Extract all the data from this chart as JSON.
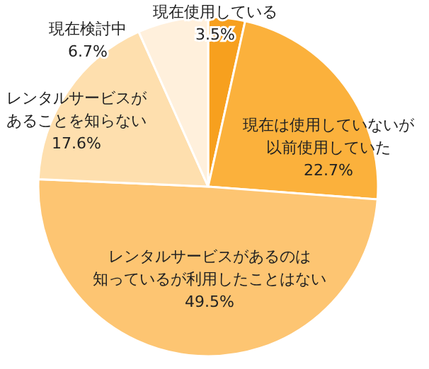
{
  "chart_data": {
    "type": "pie",
    "categories": [
      "現在使用している",
      "現在は使用していないが以前使用していた",
      "レンタルサービスがあるのは知っているが利用したことはない",
      "レンタルサービスがあることを知らない",
      "現在検討中"
    ],
    "values": [
      3.5,
      22.7,
      49.5,
      17.6,
      6.7
    ],
    "value_labels": [
      "3.5%",
      "22.7%",
      "49.5%",
      "17.6%",
      "6.7%"
    ],
    "colors": [
      "#f7a01e",
      "#fbb13c",
      "#fdc572",
      "#fedfae",
      "#fff0dc"
    ]
  }
}
